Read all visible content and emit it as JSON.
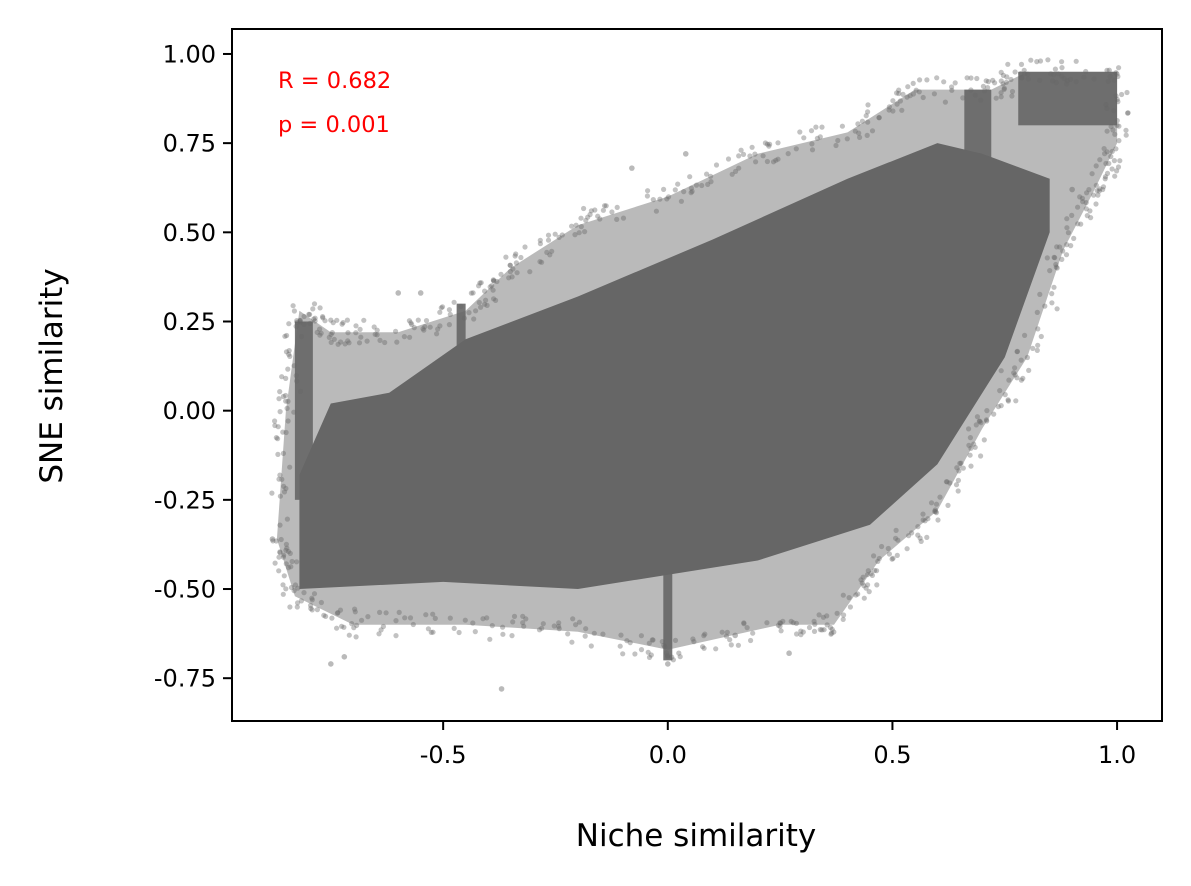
{
  "chart_data": {
    "type": "scatter",
    "xlabel": "Niche similarity",
    "ylabel": "SNE similarity",
    "xlim": [
      -0.97,
      1.1
    ],
    "ylim": [
      -0.87,
      1.07
    ],
    "x_ticks": [
      {
        "value": -0.5,
        "label": "-0.5"
      },
      {
        "value": 0.0,
        "label": "0.0"
      },
      {
        "value": 0.5,
        "label": "0.5"
      },
      {
        "value": 1.0,
        "label": "1.0"
      }
    ],
    "y_ticks": [
      {
        "value": 1.0,
        "label": "1.00"
      },
      {
        "value": 0.75,
        "label": "0.75"
      },
      {
        "value": 0.5,
        "label": "0.50"
      },
      {
        "value": 0.25,
        "label": "0.25"
      },
      {
        "value": 0.0,
        "label": "0.00"
      },
      {
        "value": -0.25,
        "label": "-0.25"
      },
      {
        "value": -0.5,
        "label": "-0.50"
      },
      {
        "value": -0.75,
        "label": "-0.75"
      }
    ],
    "grid": false,
    "point_color": "#666666",
    "annotations": [
      {
        "text": "R = 0.682",
        "color": "#ff0000"
      },
      {
        "text": "p = 0.001",
        "color": "#ff0000"
      }
    ],
    "series": [
      {
        "outline": [
          {
            "x": -0.87,
            "y": -0.36
          },
          {
            "x": -0.83,
            "y": -0.52
          },
          {
            "x": -0.7,
            "y": -0.6
          },
          {
            "x": -0.45,
            "y": -0.6
          },
          {
            "x": -0.2,
            "y": -0.62
          },
          {
            "x": 0.0,
            "y": -0.67
          },
          {
            "x": 0.25,
            "y": -0.6
          },
          {
            "x": 0.37,
            "y": -0.6
          },
          {
            "x": 0.47,
            "y": -0.42
          },
          {
            "x": 0.6,
            "y": -0.28
          },
          {
            "x": 0.7,
            "y": -0.05
          },
          {
            "x": 0.8,
            "y": 0.15
          },
          {
            "x": 0.88,
            "y": 0.45
          },
          {
            "x": 0.95,
            "y": 0.62
          },
          {
            "x": 1.0,
            "y": 0.75
          },
          {
            "x": 1.0,
            "y": 0.95
          },
          {
            "x": 0.8,
            "y": 0.95
          },
          {
            "x": 0.72,
            "y": 0.9
          },
          {
            "x": 0.55,
            "y": 0.9
          },
          {
            "x": 0.4,
            "y": 0.78
          },
          {
            "x": 0.2,
            "y": 0.72
          },
          {
            "x": 0.0,
            "y": 0.6
          },
          {
            "x": -0.2,
            "y": 0.52
          },
          {
            "x": -0.35,
            "y": 0.4
          },
          {
            "x": -0.45,
            "y": 0.28
          },
          {
            "x": -0.6,
            "y": 0.22
          },
          {
            "x": -0.75,
            "y": 0.22
          },
          {
            "x": -0.82,
            "y": 0.28
          },
          {
            "x": -0.85,
            "y": 0.0
          }
        ],
        "core": [
          {
            "x": -0.82,
            "y": -0.18
          },
          {
            "x": -0.82,
            "y": -0.5
          },
          {
            "x": -0.5,
            "y": -0.48
          },
          {
            "x": -0.2,
            "y": -0.5
          },
          {
            "x": 0.2,
            "y": -0.42
          },
          {
            "x": 0.45,
            "y": -0.32
          },
          {
            "x": 0.6,
            "y": -0.15
          },
          {
            "x": 0.75,
            "y": 0.15
          },
          {
            "x": 0.85,
            "y": 0.5
          },
          {
            "x": 0.85,
            "y": 0.65
          },
          {
            "x": 0.7,
            "y": 0.72
          },
          {
            "x": 0.6,
            "y": 0.75
          },
          {
            "x": 0.4,
            "y": 0.65
          },
          {
            "x": 0.1,
            "y": 0.48
          },
          {
            "x": -0.2,
            "y": 0.32
          },
          {
            "x": -0.45,
            "y": 0.2
          },
          {
            "x": -0.62,
            "y": 0.05
          },
          {
            "x": -0.75,
            "y": 0.02
          }
        ],
        "clusters": [
          {
            "x_min": 0.78,
            "x_max": 1.0,
            "y_min": 0.8,
            "y_max": 0.95
          },
          {
            "x_min": 0.66,
            "x_max": 0.72,
            "y_min": 0.7,
            "y_max": 0.9
          },
          {
            "x_min": -0.83,
            "x_max": -0.79,
            "y_min": -0.25,
            "y_max": 0.25
          },
          {
            "x_min": -0.47,
            "x_max": -0.45,
            "y_min": 0.1,
            "y_max": 0.3
          },
          {
            "x_min": -0.01,
            "x_max": 0.01,
            "y_min": -0.7,
            "y_max": -0.45
          }
        ],
        "outliers": [
          {
            "x": -0.37,
            "y": -0.78
          },
          {
            "x": -0.75,
            "y": -0.71
          },
          {
            "x": -0.72,
            "y": -0.69
          },
          {
            "x": -0.6,
            "y": 0.33
          },
          {
            "x": -0.55,
            "y": 0.33
          },
          {
            "x": 0.0,
            "y": -0.71
          },
          {
            "x": 0.27,
            "y": -0.68
          },
          {
            "x": 0.15,
            "y": -0.63
          },
          {
            "x": 0.8,
            "y": 0.55
          },
          {
            "x": 0.9,
            "y": 0.62
          },
          {
            "x": -0.88,
            "y": -0.36
          },
          {
            "x": -0.08,
            "y": 0.68
          },
          {
            "x": 0.04,
            "y": 0.72
          }
        ]
      }
    ]
  }
}
